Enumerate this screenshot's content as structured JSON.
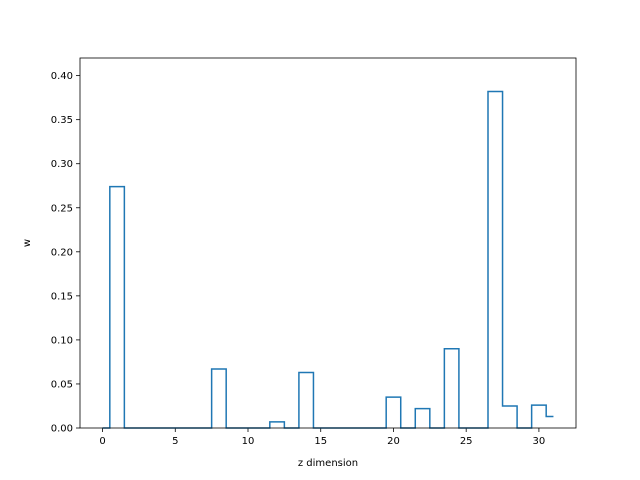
{
  "chart_data": {
    "type": "step",
    "title": "",
    "xlabel": "z dimension",
    "ylabel": "w",
    "xlim": [
      -1.55,
      32.55
    ],
    "ylim": [
      0,
      0.42
    ],
    "x_ticks": [
      0,
      5,
      10,
      15,
      20,
      25,
      30
    ],
    "y_ticks": [
      0.0,
      0.05,
      0.1,
      0.15,
      0.2,
      0.25,
      0.3,
      0.35,
      0.4
    ],
    "x_tick_labels": [
      "0",
      "5",
      "10",
      "15",
      "20",
      "25",
      "30"
    ],
    "y_tick_labels": [
      "0.00",
      "0.05",
      "0.10",
      "0.15",
      "0.20",
      "0.25",
      "0.30",
      "0.35",
      "0.40"
    ],
    "grid": false,
    "series": [
      {
        "color": "#1f77b4",
        "x": [
          0,
          1,
          2,
          3,
          4,
          5,
          6,
          7,
          8,
          9,
          10,
          11,
          12,
          13,
          14,
          15,
          16,
          17,
          18,
          19,
          20,
          21,
          22,
          23,
          24,
          25,
          26,
          27,
          28,
          29,
          30,
          31
        ],
        "values": [
          0,
          0.274,
          0,
          0,
          0,
          0,
          0,
          0,
          0.067,
          0,
          0,
          0,
          0.007,
          0,
          0.063,
          0,
          0,
          0,
          0,
          0,
          0.035,
          0,
          0.022,
          0,
          0.09,
          0,
          0,
          0.382,
          0.025,
          0,
          0.026,
          0.013
        ]
      }
    ]
  }
}
